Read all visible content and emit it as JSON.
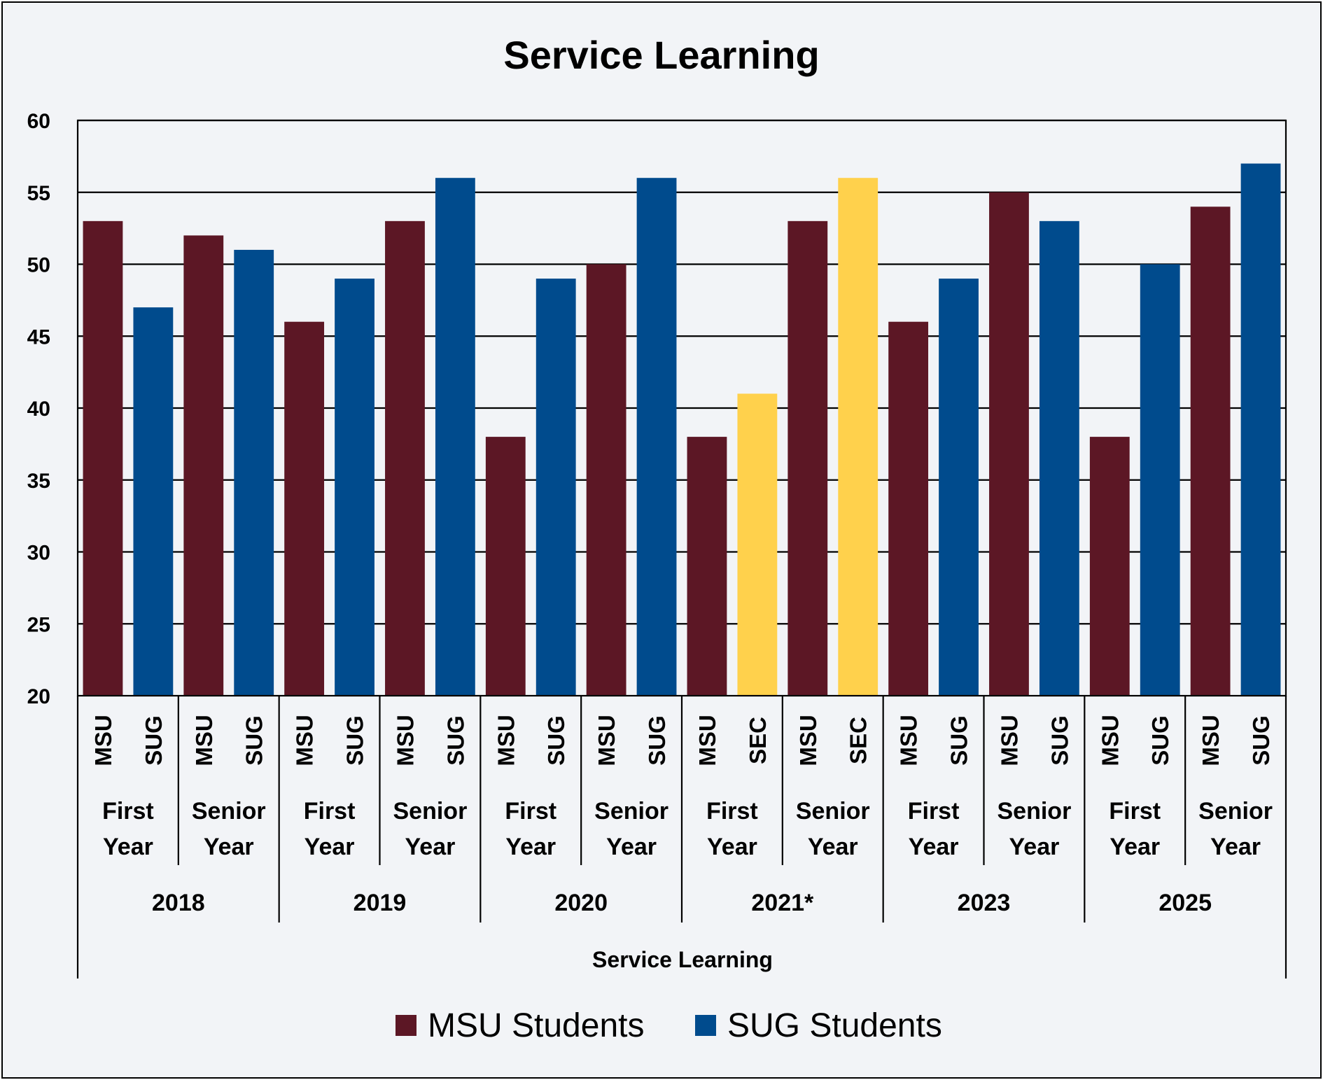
{
  "chart_data": {
    "type": "bar",
    "title": "Service Learning",
    "xlabel": "Service Learning",
    "ylabel": "",
    "ylim": [
      20,
      60
    ],
    "yticks": [
      20,
      25,
      30,
      35,
      40,
      45,
      50,
      55,
      60
    ],
    "grid": true,
    "legend_position": "bottom",
    "colors": {
      "MSU": "#5c1725",
      "SUG": "#004b8d",
      "SEC": "#ffd14c"
    },
    "legend": [
      {
        "name": "MSU Students",
        "color": "#5c1725"
      },
      {
        "name": "SUG Students",
        "color": "#004b8d"
      }
    ],
    "groups": [
      {
        "year": "2018",
        "levels": [
          {
            "label": [
              "First",
              "Year"
            ],
            "bars": [
              {
                "cat": "MSU",
                "value": 53
              },
              {
                "cat": "SUG",
                "value": 47
              }
            ]
          },
          {
            "label": [
              "Senior",
              "Year"
            ],
            "bars": [
              {
                "cat": "MSU",
                "value": 52
              },
              {
                "cat": "SUG",
                "value": 51
              }
            ]
          }
        ]
      },
      {
        "year": "2019",
        "levels": [
          {
            "label": [
              "First",
              "Year"
            ],
            "bars": [
              {
                "cat": "MSU",
                "value": 46
              },
              {
                "cat": "SUG",
                "value": 49
              }
            ]
          },
          {
            "label": [
              "Senior",
              "Year"
            ],
            "bars": [
              {
                "cat": "MSU",
                "value": 53
              },
              {
                "cat": "SUG",
                "value": 56
              }
            ]
          }
        ]
      },
      {
        "year": "2020",
        "levels": [
          {
            "label": [
              "First",
              "Year"
            ],
            "bars": [
              {
                "cat": "MSU",
                "value": 38
              },
              {
                "cat": "SUG",
                "value": 49
              }
            ]
          },
          {
            "label": [
              "Senior",
              "Year"
            ],
            "bars": [
              {
                "cat": "MSU",
                "value": 50
              },
              {
                "cat": "SUG",
                "value": 56
              }
            ]
          }
        ]
      },
      {
        "year": "2021*",
        "levels": [
          {
            "label": [
              "First",
              "Year"
            ],
            "bars": [
              {
                "cat": "MSU",
                "value": 38
              },
              {
                "cat": "SEC",
                "value": 41
              }
            ]
          },
          {
            "label": [
              "Senior",
              "Year"
            ],
            "bars": [
              {
                "cat": "MSU",
                "value": 53
              },
              {
                "cat": "SEC",
                "value": 56
              }
            ]
          }
        ]
      },
      {
        "year": "2023",
        "levels": [
          {
            "label": [
              "First",
              "Year"
            ],
            "bars": [
              {
                "cat": "MSU",
                "value": 46
              },
              {
                "cat": "SUG",
                "value": 49
              }
            ]
          },
          {
            "label": [
              "Senior",
              "Year"
            ],
            "bars": [
              {
                "cat": "MSU",
                "value": 55
              },
              {
                "cat": "SUG",
                "value": 53
              }
            ]
          }
        ]
      },
      {
        "year": "2025",
        "levels": [
          {
            "label": [
              "First",
              "Year"
            ],
            "bars": [
              {
                "cat": "MSU",
                "value": 38
              },
              {
                "cat": "SUG",
                "value": 50
              }
            ]
          },
          {
            "label": [
              "Senior",
              "Year"
            ],
            "bars": [
              {
                "cat": "MSU",
                "value": 54
              },
              {
                "cat": "SUG",
                "value": 57
              }
            ]
          }
        ]
      }
    ]
  }
}
